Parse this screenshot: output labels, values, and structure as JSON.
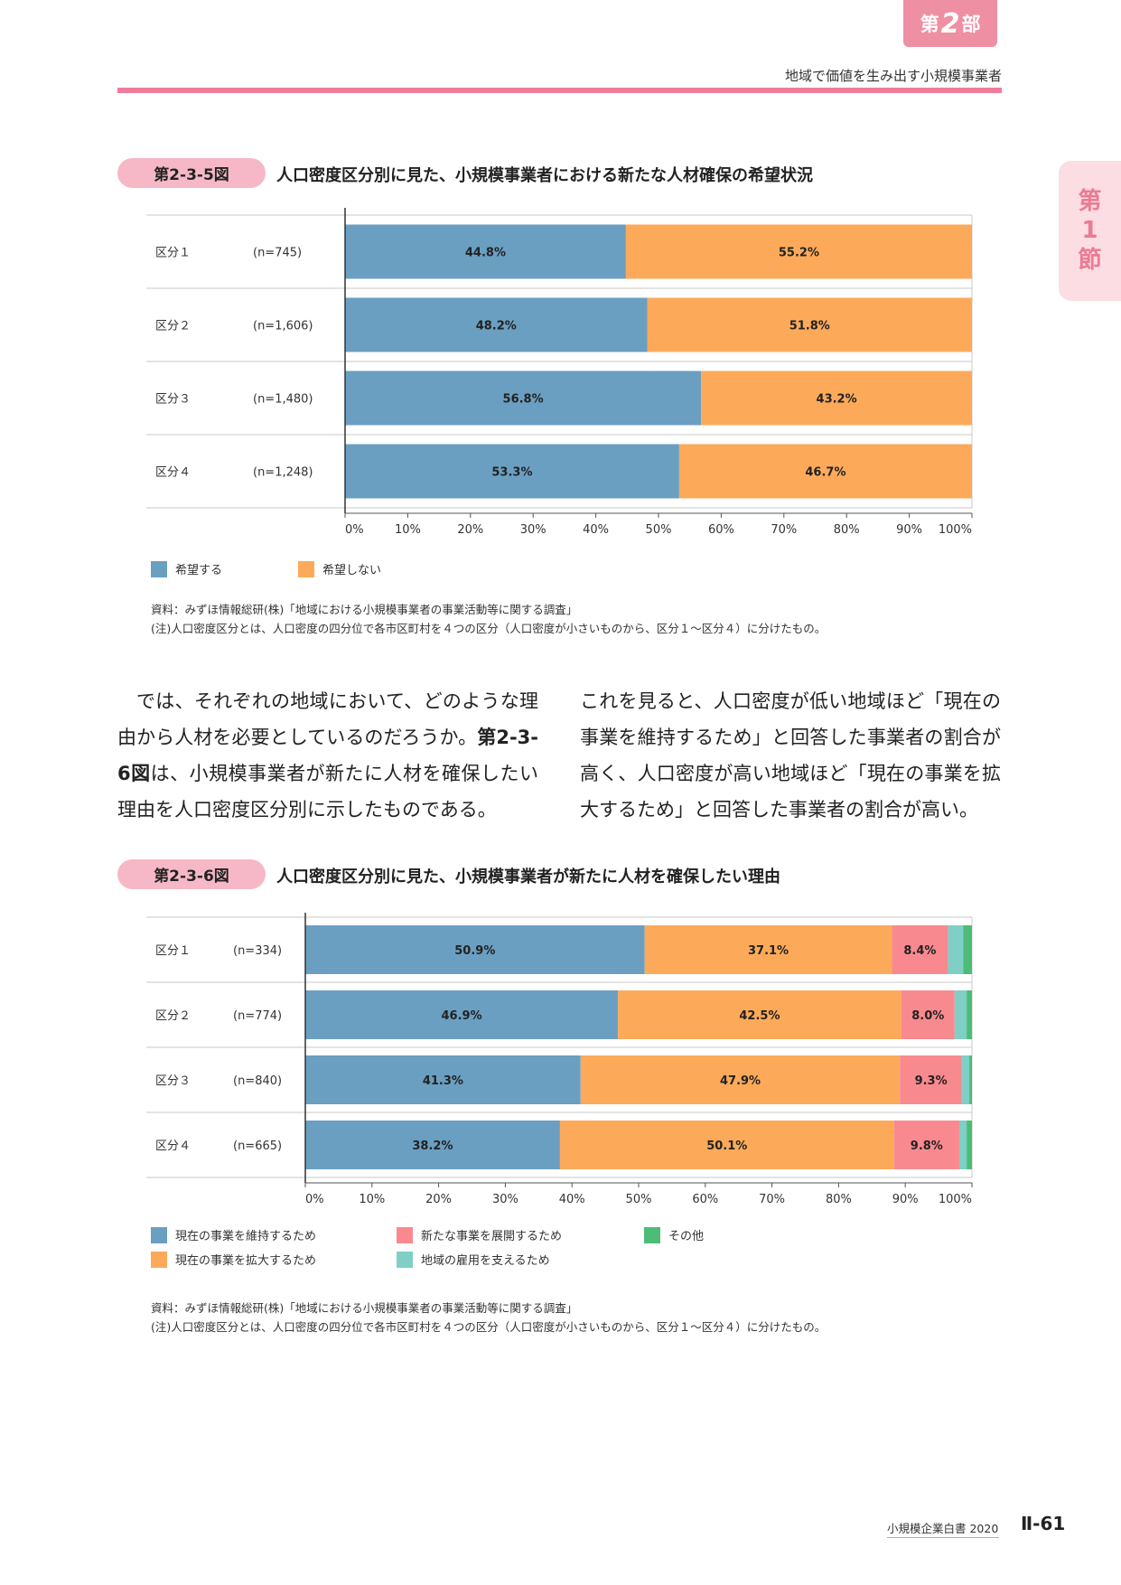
{
  "header": {
    "part_prefix": "第",
    "part_number": "2",
    "part_suffix": "部",
    "subtitle": "地域で価値を生み出す小規模事業者",
    "section_tab": [
      "第",
      "1",
      "節"
    ]
  },
  "colors": {
    "accent_pink": "#ef7c9a",
    "blue": "#6a9fc1",
    "orange": "#fcaa5a",
    "red": "#f88a8f",
    "teal": "#7fcfc7",
    "green": "#4cbc77"
  },
  "figures": [
    {
      "tab": "第2-3-5図",
      "title": "人口密度区分別に見た、小規模事業者における新たな人材確保の希望状況",
      "source": "資料：みずほ情報総研(株)「地域における小規模事業者の事業活動等に関する調査」",
      "note": "(注)人口密度区分とは、人口密度の四分位で各市区町村を４つの区分（人口密度が小さいものから、区分１〜区分４）に分けたもの。"
    },
    {
      "tab": "第2-3-6図",
      "title": "人口密度区分別に見た、小規模事業者が新たに人材を確保したい理由",
      "source": "資料：みずほ情報総研(株)「地域における小規模事業者の事業活動等に関する調査」",
      "note": "(注)人口密度区分とは、人口密度の四分位で各市区町村を４つの区分（人口密度が小さいものから、区分１〜区分４）に分けたもの。"
    }
  ],
  "chart_data": [
    {
      "type": "bar",
      "orientation": "horizontal",
      "stacked": true,
      "categories": [
        "区分１",
        "区分２",
        "区分３",
        "区分４"
      ],
      "n_labels": [
        "(n=745)",
        "(n=1,606)",
        "(n=1,480)",
        "(n=1,248)"
      ],
      "series": [
        {
          "name": "希望する",
          "color": "#6a9fc1",
          "values": [
            44.8,
            48.2,
            56.8,
            53.3
          ]
        },
        {
          "name": "希望しない",
          "color": "#fcaa5a",
          "values": [
            55.2,
            51.8,
            43.2,
            46.7
          ]
        }
      ],
      "value_format": "%",
      "xlim": [
        0,
        100
      ],
      "x_ticks": [
        "0%",
        "10%",
        "20%",
        "30%",
        "40%",
        "50%",
        "60%",
        "70%",
        "80%",
        "90%",
        "100%"
      ],
      "grid": true,
      "legend": "bottom-left"
    },
    {
      "type": "bar",
      "orientation": "horizontal",
      "stacked": true,
      "categories": [
        "区分１",
        "区分２",
        "区分３",
        "区分４"
      ],
      "n_labels": [
        "(n=334)",
        "(n=774)",
        "(n=840)",
        "(n=665)"
      ],
      "series": [
        {
          "name": "現在の事業を維持するため",
          "color": "#6a9fc1",
          "values": [
            50.9,
            46.9,
            41.3,
            38.2
          ]
        },
        {
          "name": "現在の事業を拡大するため",
          "color": "#fcaa5a",
          "values": [
            37.1,
            42.5,
            47.9,
            50.1
          ]
        },
        {
          "name": "新たな事業を展開するため",
          "color": "#f88a8f",
          "values": [
            8.4,
            8.0,
            9.3,
            9.8
          ]
        },
        {
          "name": "地域の雇用を支えるため",
          "color": "#7fcfc7",
          "values": [
            2.3,
            1.8,
            1.1,
            1.1
          ]
        },
        {
          "name": "その他",
          "color": "#4cbc77",
          "values": [
            1.3,
            0.8,
            0.4,
            0.8
          ]
        }
      ],
      "labeled_series": 3,
      "value_format": "%",
      "xlim": [
        0,
        100
      ],
      "x_ticks": [
        "0%",
        "10%",
        "20%",
        "30%",
        "40%",
        "50%",
        "60%",
        "70%",
        "80%",
        "90%",
        "100%"
      ],
      "grid": true,
      "legend": "bottom-left"
    }
  ],
  "body_left": [
    "では、それぞれの地域において、どのような理由から人材を必要としているのだろうか。",
    "第2-3-6図",
    "は、小規模事業者が新たに人材を確保したい理由を人口密度区分別に示したものである。"
  ],
  "body_right": "これを見ると、人口密度が低い地域ほど「現在の事業を維持するため」と回答した事業者の割合が高く、人口密度が高い地域ほど「現在の事業を拡大するため」と回答した事業者の割合が高い。",
  "footer": {
    "book": "小規模企業白書 2020",
    "page": "Ⅱ-61"
  }
}
